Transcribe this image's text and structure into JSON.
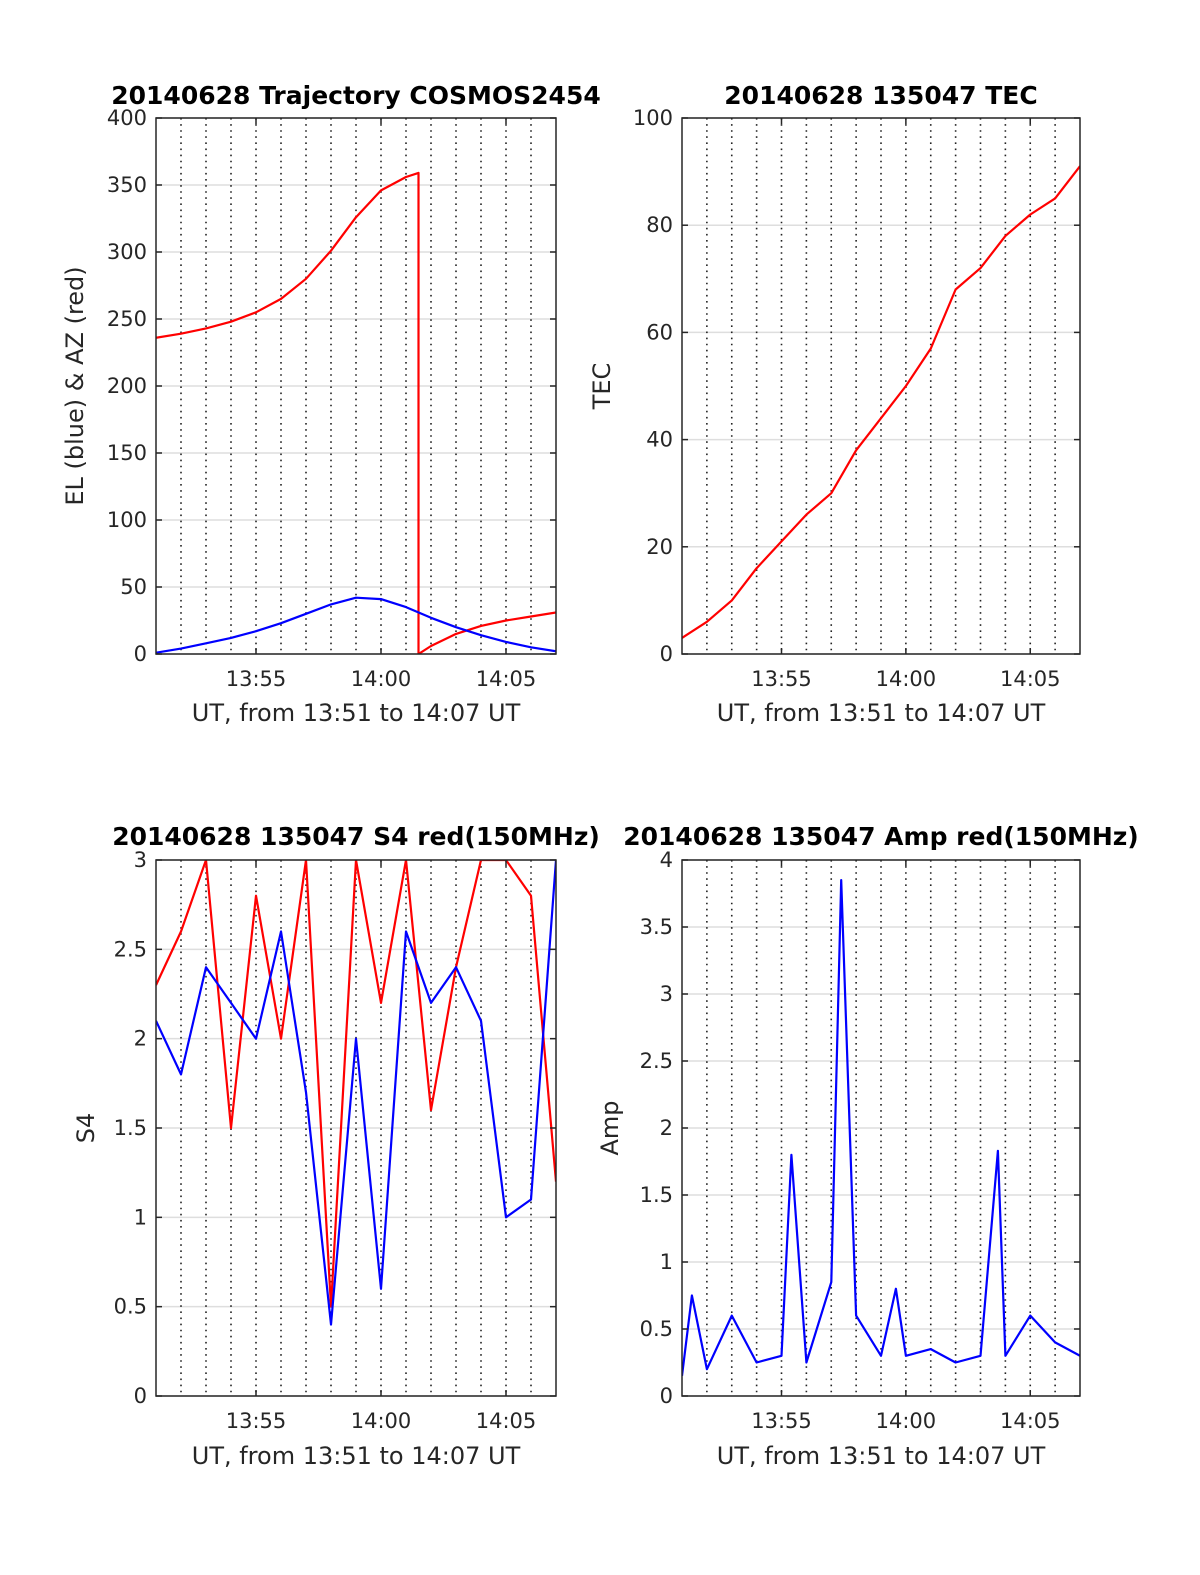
{
  "chart_data": [
    {
      "type": "line",
      "title": "20140628 Trajectory COSMOS2454",
      "xlabel": "UT, from 13:51 to 14:07 UT",
      "ylabel": "EL (blue) & AZ (red)",
      "xlim": [
        "13:51",
        "14:07"
      ],
      "ylim": [
        0,
        400
      ],
      "x_ticks": [
        "13:55",
        "14:00",
        "14:05"
      ],
      "y_ticks": [
        0,
        50,
        100,
        150,
        200,
        250,
        300,
        350,
        400
      ],
      "grid": "x dotted minute lines, y solid light lines",
      "series": [
        {
          "color": "#ff0000",
          "x": [
            "13:51",
            "13:52",
            "13:53",
            "13:54",
            "13:55",
            "13:56",
            "13:57",
            "13:58",
            "13:59",
            "14:00",
            "14:01",
            "14:01.5",
            "14:01.5",
            "14:02",
            "14:03",
            "14:04",
            "14:05",
            "14:06",
            "14:07"
          ],
          "values": [
            236,
            239,
            243,
            248,
            255,
            265,
            280,
            301,
            326,
            346,
            356,
            359,
            0,
            6,
            15,
            21,
            25,
            28,
            31
          ]
        },
        {
          "color": "#0000ff",
          "x": [
            "13:51",
            "13:52",
            "13:53",
            "13:54",
            "13:55",
            "13:56",
            "13:57",
            "13:58",
            "13:59",
            "14:00",
            "14:01",
            "14:02",
            "14:03",
            "14:04",
            "14:05",
            "14:06",
            "14:07"
          ],
          "values": [
            1,
            4,
            8,
            12,
            17,
            23,
            30,
            37,
            42,
            41,
            35,
            27,
            20,
            14,
            9,
            5,
            2
          ]
        }
      ]
    },
    {
      "type": "line",
      "title": "20140628 135047 TEC",
      "xlabel": "UT, from 13:51 to 14:07 UT",
      "ylabel": "TEC",
      "xlim": [
        "13:51",
        "14:07"
      ],
      "ylim": [
        0,
        100
      ],
      "x_ticks": [
        "13:55",
        "14:00",
        "14:05"
      ],
      "y_ticks": [
        0,
        20,
        40,
        60,
        80,
        100
      ],
      "series": [
        {
          "color": "#ff0000",
          "x": [
            "13:51",
            "13:52",
            "13:53",
            "13:54",
            "13:55",
            "13:56",
            "13:57",
            "13:58",
            "13:59",
            "14:00",
            "14:01",
            "14:02",
            "14:03",
            "14:04",
            "14:05",
            "14:06",
            "14:07"
          ],
          "values": [
            3,
            6,
            10,
            16,
            21,
            26,
            30,
            38,
            44,
            50,
            57,
            68,
            72,
            78,
            82,
            85,
            91
          ]
        }
      ]
    },
    {
      "type": "line",
      "title": "20140628 135047 S4 red(150MHz)",
      "xlabel": "UT, from 13:51 to 14:07 UT",
      "ylabel": "S4",
      "xlim": [
        "13:51",
        "14:07"
      ],
      "ylim": [
        0,
        3
      ],
      "x_ticks": [
        "13:55",
        "14:00",
        "14:05"
      ],
      "y_ticks": [
        0,
        0.5,
        1,
        1.5,
        2,
        2.5,
        3
      ],
      "series": [
        {
          "color": "#ff0000",
          "x": [
            "13:51",
            "13:52",
            "13:53",
            "13:54",
            "13:55",
            "13:56",
            "13:57",
            "13:58",
            "13:59",
            "14:00",
            "14:01",
            "14:02",
            "14:03",
            "14:04",
            "14:05",
            "14:06",
            "14:07"
          ],
          "values": [
            2.3,
            2.6,
            3.0,
            1.5,
            2.8,
            2.0,
            3.0,
            0.5,
            3.0,
            2.2,
            3.0,
            1.6,
            2.4,
            3.0,
            3.0,
            2.8,
            1.2
          ]
        },
        {
          "color": "#0000ff",
          "x": [
            "13:51",
            "13:52",
            "13:53",
            "13:54",
            "13:55",
            "13:56",
            "13:57",
            "13:58",
            "13:59",
            "14:00",
            "14:01",
            "14:02",
            "14:03",
            "14:04",
            "14:05",
            "14:06",
            "14:07"
          ],
          "values": [
            2.1,
            1.8,
            2.4,
            2.2,
            2.0,
            2.6,
            1.7,
            0.4,
            2.0,
            0.6,
            2.6,
            2.2,
            2.4,
            2.1,
            1.0,
            1.1,
            3.0
          ]
        }
      ]
    },
    {
      "type": "line",
      "title": "20140628 135047 Amp red(150MHz)",
      "xlabel": "UT, from 13:51 to 14:07 UT",
      "ylabel": "Amp",
      "xlim": [
        "13:51",
        "14:07"
      ],
      "ylim": [
        0,
        4
      ],
      "x_ticks": [
        "13:55",
        "14:00",
        "14:05"
      ],
      "y_ticks": [
        0,
        0.5,
        1,
        1.5,
        2,
        2.5,
        3,
        3.5,
        4
      ],
      "series": [
        {
          "color": "#0000ff",
          "x": [
            "13:51",
            "13:51.4",
            "13:52",
            "13:53",
            "13:54",
            "13:55",
            "13:55.4",
            "13:56",
            "13:57",
            "13:57.4",
            "13:58",
            "13:59",
            "13:59.6",
            "14:00",
            "14:01",
            "14:02",
            "14:03",
            "14:03.7",
            "14:04",
            "14:05",
            "14:06",
            "14:07"
          ],
          "values": [
            0.15,
            0.75,
            0.2,
            0.6,
            0.25,
            0.3,
            1.8,
            0.25,
            0.85,
            3.85,
            0.6,
            0.3,
            0.8,
            0.3,
            0.35,
            0.25,
            0.3,
            1.83,
            0.3,
            0.6,
            0.4,
            0.3
          ]
        }
      ]
    }
  ]
}
